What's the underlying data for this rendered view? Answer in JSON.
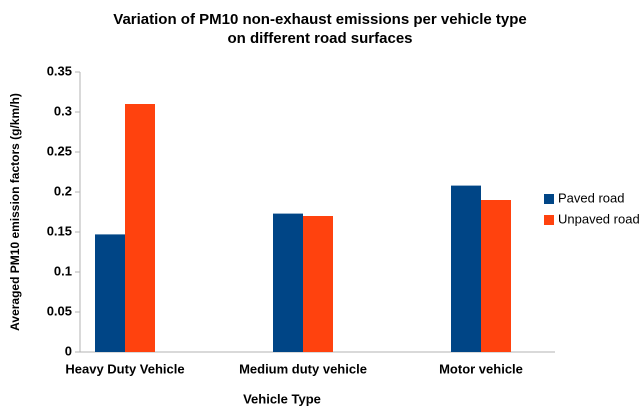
{
  "chart_data": {
    "type": "bar",
    "title": [
      "Variation of  PM10 non-exhaust emissions per vehicle type",
      "on different road surfaces"
    ],
    "x_label": "Vehicle Type",
    "y_label": "Averaged PM10 emission factors  (g/km/h)",
    "categories": [
      "Heavy Duty Vehicle",
      "Medium duty vehicle",
      "Motor vehicle"
    ],
    "series": [
      {
        "name": "Paved road",
        "color": "#004586",
        "values": [
          0.147,
          0.173,
          0.208
        ]
      },
      {
        "name": "Unpaved road",
        "color": "#ff420e",
        "values": [
          0.31,
          0.17,
          0.19
        ]
      }
    ],
    "ylim": [
      0,
      0.35
    ],
    "yticks": [
      0,
      0.05,
      0.1,
      0.15,
      0.2,
      0.25,
      0.3,
      0.35
    ],
    "grid": false,
    "legend": "right"
  }
}
